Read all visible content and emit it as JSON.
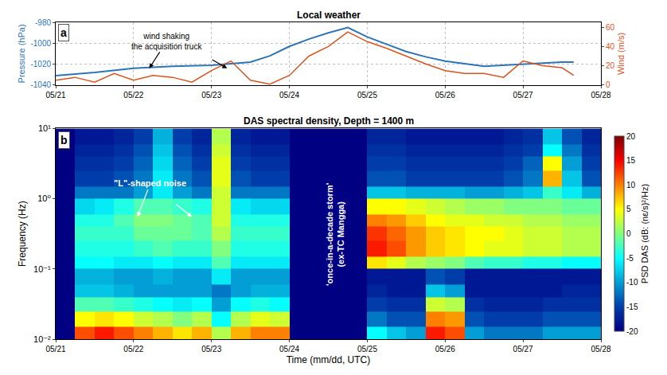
{
  "chart_data": [
    {
      "type": "line",
      "panel_label": "a",
      "title": "Local weather",
      "y_label": "Pressure (hPa)",
      "y2_label": "Wind (m/s)",
      "xlim": [
        21,
        28
      ],
      "xticks": [
        {
          "value": 21,
          "label": "05/21"
        },
        {
          "value": 22,
          "label": "05/22"
        },
        {
          "value": 23,
          "label": "05/23"
        },
        {
          "value": 24,
          "label": "05/24"
        },
        {
          "value": 25,
          "label": "05/25"
        },
        {
          "value": 26,
          "label": "05/26"
        },
        {
          "value": 27,
          "label": "05/27"
        },
        {
          "value": 28,
          "label": "05/28"
        }
      ],
      "ylim": [
        -1040,
        -980
      ],
      "yticks": [
        -1040,
        -1020,
        -1000,
        -980
      ],
      "y2lim": [
        0,
        65
      ],
      "y2ticks": [
        0,
        20,
        40,
        60
      ],
      "grid": true,
      "annotations": [
        {
          "lines": [
            "wind shaking",
            "the acquisition truck"
          ]
        }
      ],
      "series": [
        {
          "color": "#2e75b6",
          "x": [
            21,
            21.5,
            22,
            22.5,
            23,
            23.5,
            23.75,
            24,
            24.25,
            24.5,
            24.75,
            25,
            25.25,
            25.5,
            25.75,
            26,
            26.5,
            27,
            27.5,
            27.65
          ],
          "values": [
            -1031,
            -1028,
            -1024,
            -1022,
            -1021,
            -1018,
            -1012,
            -1003,
            -996,
            -990,
            -985,
            -994,
            -1001,
            -1008,
            -1013,
            -1017,
            -1022,
            -1020,
            -1018,
            -1018
          ]
        },
        {
          "color": "#d9541e",
          "axis": "y2",
          "x": [
            21,
            21.25,
            21.5,
            21.75,
            22,
            22.25,
            22.5,
            22.75,
            23,
            23.25,
            23.5,
            23.75,
            24,
            24.25,
            24.5,
            24.75,
            25,
            25.25,
            25.5,
            25.75,
            26,
            26.25,
            26.5,
            26.75,
            27,
            27.25,
            27.5,
            27.65
          ],
          "values": [
            5,
            8,
            3,
            12,
            5,
            10,
            8,
            3,
            15,
            25,
            5,
            1,
            10,
            30,
            40,
            55,
            45,
            38,
            30,
            22,
            15,
            12,
            12,
            8,
            25,
            20,
            18,
            10
          ]
        }
      ]
    },
    {
      "type": "heatmap",
      "panel_label": "b",
      "title": "DAS spectral density, Depth = 1400 m",
      "x_label": "Time (mm/dd, UTC)",
      "y_label": "Frequency (Hz)",
      "log": "y",
      "xlim": [
        21,
        28
      ],
      "xticks": [
        {
          "value": 21,
          "label": "05/21"
        },
        {
          "value": 22,
          "label": "05/22"
        },
        {
          "value": 23,
          "label": "05/23"
        },
        {
          "value": 24,
          "label": "05/24"
        },
        {
          "value": 25,
          "label": "05/25"
        },
        {
          "value": 26,
          "label": "05/26"
        },
        {
          "value": 27,
          "label": "05/27"
        },
        {
          "value": 28,
          "label": "05/28"
        }
      ],
      "ylim": [
        0.01,
        10
      ],
      "yticks": [
        {
          "value": 0.01,
          "label": "10⁻²"
        },
        {
          "value": 0.1,
          "label": "10⁻¹"
        },
        {
          "value": 1,
          "label": "10⁰"
        },
        {
          "value": 10,
          "label": "10¹"
        }
      ],
      "annotations": [
        {
          "lines": [
            "\"L\"-shaped noise"
          ]
        },
        {
          "lines": [
            "'once-in-a-decade storm'",
            "(ex-TC Mangga)"
          ]
        }
      ],
      "heatmap": {
        "x_edges": [
          21,
          21.25,
          21.5,
          21.75,
          22,
          22.25,
          22.5,
          22.75,
          23,
          23.25,
          23.5,
          23.75,
          24,
          24.25,
          24.5,
          24.75,
          25,
          25.25,
          25.5,
          25.75,
          26,
          26.25,
          26.5,
          26.75,
          27,
          27.25,
          27.5,
          27.75,
          28
        ],
        "y_edges": [
          0.01,
          0.015,
          0.025,
          0.04,
          0.06,
          0.1,
          0.15,
          0.25,
          0.4,
          0.6,
          1,
          1.5,
          2.5,
          4,
          6,
          10
        ],
        "z": [
          [
            -20,
            12,
            14,
            12,
            10,
            8,
            6,
            8,
            2,
            8,
            10,
            10,
            -20,
            -20,
            -20,
            -20,
            -5,
            -8,
            -10,
            14,
            12,
            -10,
            -12,
            -12,
            -12,
            -10,
            -10,
            -10
          ],
          [
            -20,
            5,
            6,
            5,
            3,
            2,
            0,
            2,
            -5,
            2,
            4,
            3,
            -20,
            -20,
            -20,
            -20,
            -12,
            -14,
            -14,
            10,
            9,
            -14,
            -15,
            -15,
            -15,
            -14,
            -14,
            -14
          ],
          [
            -20,
            -2,
            -2,
            -3,
            -4,
            -5,
            -6,
            -5,
            -10,
            -5,
            -4,
            -5,
            -20,
            -20,
            -20,
            -20,
            -15,
            -16,
            -16,
            3,
            2,
            -16,
            -17,
            -17,
            -17,
            -16,
            -16,
            -16
          ],
          [
            -20,
            -8,
            -8,
            -9,
            -10,
            -10,
            -10,
            -10,
            -12,
            -10,
            -9,
            -9,
            -20,
            -20,
            -20,
            -20,
            -17,
            -18,
            -18,
            -8,
            -10,
            -18,
            -18,
            -18,
            -18,
            -18,
            -17,
            -17
          ],
          [
            -20,
            -9,
            -9,
            -10,
            -10,
            -9,
            -10,
            -10,
            -6,
            -10,
            -10,
            -10,
            -20,
            -20,
            -20,
            -20,
            -18,
            -18,
            -18,
            -14,
            -15,
            -18,
            -18,
            -18,
            -18,
            -18,
            -18,
            -18
          ],
          [
            -20,
            -5,
            -5,
            -6,
            -6,
            -5,
            -6,
            -6,
            -2,
            -6,
            -6,
            -6,
            -20,
            -20,
            -20,
            -20,
            6,
            4,
            2,
            1,
            0,
            -2,
            -3,
            -3,
            -4,
            -4,
            -5,
            -5
          ],
          [
            -20,
            -4,
            -4,
            -4,
            -3,
            -2,
            -3,
            -3,
            0,
            -4,
            -4,
            -4,
            -20,
            -20,
            -20,
            -20,
            14,
            12,
            9,
            7,
            6,
            5,
            4,
            4,
            3,
            3,
            2,
            2
          ],
          [
            -20,
            -3,
            -3,
            -3,
            -1,
            -1,
            -1,
            -2,
            2,
            -3,
            -3,
            -3,
            -20,
            -20,
            -20,
            -20,
            13,
            11,
            9,
            7,
            6,
            5,
            5,
            4,
            3,
            3,
            2,
            2
          ],
          [
            -20,
            -4,
            -4,
            -2,
            0,
            0,
            -1,
            -2,
            3,
            -4,
            -4,
            -4,
            -20,
            -20,
            -20,
            -20,
            10,
            9,
            7,
            5,
            4,
            4,
            3,
            3,
            2,
            2,
            1,
            1
          ],
          [
            -20,
            -7,
            -6,
            -4,
            -2,
            -2,
            -3,
            -4,
            3,
            -6,
            -7,
            -7,
            -20,
            -20,
            -20,
            -20,
            5,
            5,
            4,
            3,
            2,
            1,
            1,
            0,
            0,
            0,
            -1,
            -1
          ],
          [
            -20,
            -12,
            -12,
            -12,
            -10,
            -6,
            -10,
            -12,
            3,
            -12,
            -12,
            -12,
            -20,
            -20,
            -20,
            -20,
            -8,
            -8,
            -9,
            -9,
            -9,
            -10,
            -10,
            -9,
            -8,
            -3,
            -6,
            -9
          ],
          [
            -20,
            -15,
            -15,
            -14,
            -12,
            -6,
            -12,
            -14,
            4,
            -14,
            -15,
            -15,
            -20,
            -20,
            -20,
            -20,
            -14,
            -14,
            -15,
            -15,
            -15,
            -15,
            -15,
            -14,
            -12,
            8,
            -8,
            -14
          ],
          [
            -20,
            -16,
            -16,
            -15,
            -13,
            -7,
            -13,
            -15,
            4,
            -15,
            -16,
            -16,
            -20,
            -20,
            -20,
            -20,
            -15,
            -15,
            -16,
            -16,
            -16,
            -16,
            -16,
            -15,
            -13,
            5,
            -10,
            -15
          ],
          [
            -20,
            -17,
            -17,
            -16,
            -14,
            -8,
            -14,
            -16,
            3,
            -16,
            -17,
            -17,
            -20,
            -20,
            -20,
            -20,
            -16,
            -16,
            -17,
            -17,
            -17,
            -17,
            -17,
            -16,
            -15,
            -5,
            -12,
            -16
          ],
          [
            -20,
            -18,
            -18,
            -17,
            -15,
            -9,
            -15,
            -17,
            2,
            -17,
            -18,
            -18,
            -20,
            -20,
            -20,
            -20,
            -17,
            -17,
            -18,
            -18,
            -18,
            -18,
            -18,
            -17,
            -16,
            -8,
            -14,
            -17
          ]
        ],
        "zlim": [
          -20,
          20
        ],
        "zticks": [
          -20,
          -15,
          -10,
          -5,
          0,
          5,
          10,
          15,
          20
        ],
        "colorbar_label": "PSD DAS (dB: (nε/s)²/Hz)"
      }
    }
  ]
}
